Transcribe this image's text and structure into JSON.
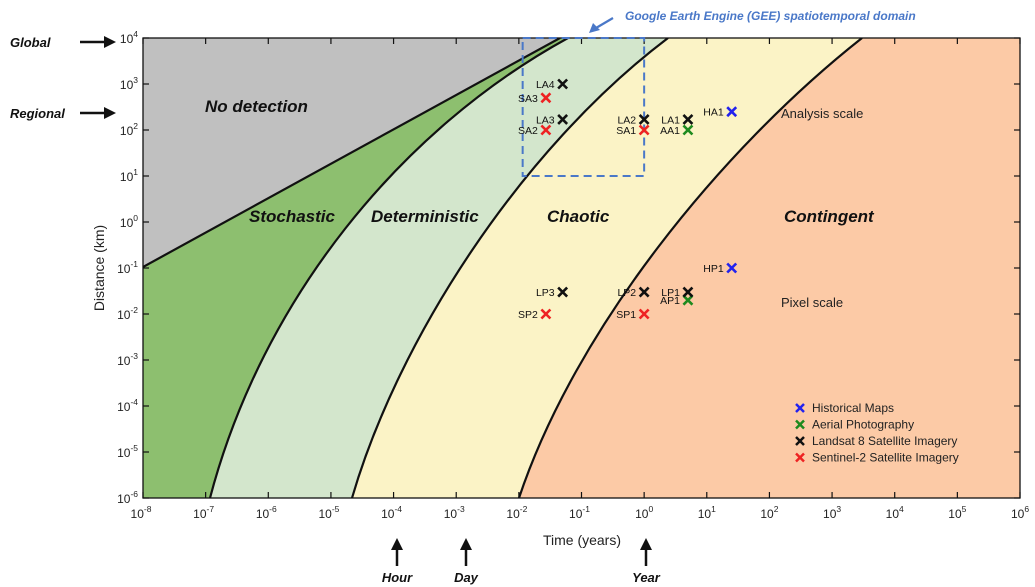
{
  "chart_data": {
    "type": "scatter",
    "xlabel": "Time (years)",
    "ylabel": "Distance (km)",
    "xscale": "log",
    "yscale": "log",
    "xlim": [
      1e-08,
      1000000.0
    ],
    "ylim": [
      1e-06,
      10000.0
    ],
    "x_ticks": [
      -8,
      -7,
      -6,
      -5,
      -4,
      -3,
      -2,
      -1,
      0,
      1,
      2,
      3,
      4,
      5,
      6
    ],
    "y_ticks": [
      -6,
      -5,
      -4,
      -3,
      -2,
      -1,
      0,
      1,
      2,
      3,
      4
    ],
    "tick_base": "10",
    "grid": false,
    "legend_position": "bottom-right",
    "regions": [
      {
        "name": "No detection",
        "color": "#c0c0c0"
      },
      {
        "name": "Stochastic",
        "color": "#8dbf6f"
      },
      {
        "name": "Deterministic",
        "color": "#d3e6cc"
      },
      {
        "name": "Chaotic",
        "color": "#fbf3c6"
      },
      {
        "name": "Contingent",
        "color": "#fccaa6"
      }
    ],
    "series": [
      {
        "name": "Historical Maps",
        "color": "#2222ee",
        "points": [
          {
            "label": "HA1",
            "x": 25,
            "y": 250
          },
          {
            "label": "HP1",
            "x": 25,
            "y": 0.1
          }
        ]
      },
      {
        "name": "Aerial Photography",
        "color": "#1e8a1e",
        "points": [
          {
            "label": "AA1",
            "x": 5,
            "y": 100
          },
          {
            "label": "AP1",
            "x": 5,
            "y": 0.02
          }
        ]
      },
      {
        "name": "Landsat 8 Satellite Imagery",
        "color": "#111111",
        "points": [
          {
            "label": "LA4",
            "x": 0.05,
            "y": 1000
          },
          {
            "label": "LA3",
            "x": 0.05,
            "y": 170
          },
          {
            "label": "LA2",
            "x": 1,
            "y": 170
          },
          {
            "label": "LA1",
            "x": 5,
            "y": 170
          },
          {
            "label": "LP3",
            "x": 0.05,
            "y": 0.03
          },
          {
            "label": "LP2",
            "x": 1,
            "y": 0.03
          },
          {
            "label": "LP1",
            "x": 5,
            "y": 0.03
          }
        ]
      },
      {
        "name": "Sentinel-2 Satellite Imagery",
        "color": "#ee2222",
        "points": [
          {
            "label": "SA3",
            "x": 0.027,
            "y": 500
          },
          {
            "label": "SA2",
            "x": 0.027,
            "y": 100
          },
          {
            "label": "SA1",
            "x": 1,
            "y": 100
          },
          {
            "label": "SP2",
            "x": 0.027,
            "y": 0.01
          },
          {
            "label": "SP1",
            "x": 1,
            "y": 0.01
          }
        ]
      }
    ],
    "gee_domain": {
      "label": "Google Earth Engine (GEE) spatiotemporal domain",
      "x": [
        0.0115,
        1
      ],
      "y": [
        10,
        10000
      ]
    },
    "scale_labels": [
      "Analysis scale",
      "Pixel scale"
    ],
    "y_markers": [
      {
        "label": "Global",
        "y": 10000
      },
      {
        "label": "Regional",
        "y": 200
      }
    ],
    "x_markers": [
      {
        "label": "Hour",
        "x": 0.000114
      },
      {
        "label": "Day",
        "x": 0.00274
      },
      {
        "label": "Year",
        "x": 1
      }
    ]
  }
}
